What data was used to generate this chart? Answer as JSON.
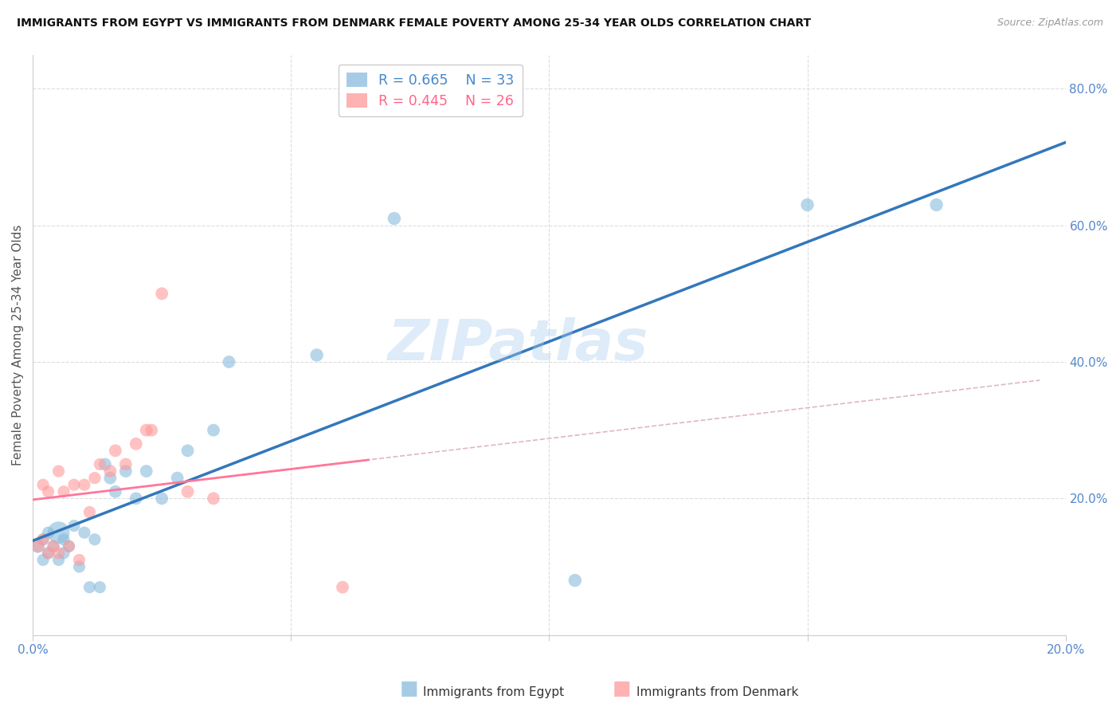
{
  "title": "IMMIGRANTS FROM EGYPT VS IMMIGRANTS FROM DENMARK FEMALE POVERTY AMONG 25-34 YEAR OLDS CORRELATION CHART",
  "source": "Source: ZipAtlas.com",
  "ylabel": "Female Poverty Among 25-34 Year Olds",
  "xlim": [
    0.0,
    0.2
  ],
  "ylim": [
    0.0,
    0.85
  ],
  "ytick_right": [
    0.2,
    0.4,
    0.6,
    0.8
  ],
  "ytick_right_labels": [
    "20.0%",
    "40.0%",
    "60.0%",
    "80.0%"
  ],
  "legend_egypt_R": "R = 0.665",
  "legend_egypt_N": "N = 33",
  "legend_denmark_R": "R = 0.445",
  "legend_denmark_N": "N = 26",
  "egypt_color": "#88BBDD",
  "denmark_color": "#FF9999",
  "egypt_line_color": "#3377BB",
  "denmark_line_color": "#FF7799",
  "ref_line_color": "#DDB0BB",
  "background_color": "#FFFFFF",
  "watermark": "ZIPatlas",
  "watermark_color": "#AACCEE",
  "egypt_x": [
    0.001,
    0.002,
    0.002,
    0.003,
    0.003,
    0.004,
    0.005,
    0.005,
    0.006,
    0.006,
    0.007,
    0.008,
    0.009,
    0.01,
    0.011,
    0.012,
    0.013,
    0.014,
    0.015,
    0.016,
    0.018,
    0.02,
    0.022,
    0.025,
    0.028,
    0.03,
    0.035,
    0.038,
    0.055,
    0.07,
    0.105,
    0.15,
    0.175
  ],
  "egypt_y": [
    0.13,
    0.11,
    0.14,
    0.12,
    0.15,
    0.13,
    0.11,
    0.15,
    0.12,
    0.14,
    0.13,
    0.16,
    0.1,
    0.15,
    0.07,
    0.14,
    0.07,
    0.25,
    0.23,
    0.21,
    0.24,
    0.2,
    0.24,
    0.2,
    0.23,
    0.27,
    0.3,
    0.4,
    0.41,
    0.61,
    0.08,
    0.63,
    0.63
  ],
  "denmark_x": [
    0.001,
    0.002,
    0.002,
    0.003,
    0.003,
    0.004,
    0.005,
    0.005,
    0.006,
    0.007,
    0.008,
    0.009,
    0.01,
    0.011,
    0.012,
    0.013,
    0.015,
    0.016,
    0.018,
    0.02,
    0.022,
    0.023,
    0.025,
    0.03,
    0.035,
    0.06
  ],
  "denmark_y": [
    0.13,
    0.14,
    0.22,
    0.12,
    0.21,
    0.13,
    0.24,
    0.12,
    0.21,
    0.13,
    0.22,
    0.11,
    0.22,
    0.18,
    0.23,
    0.25,
    0.24,
    0.27,
    0.25,
    0.28,
    0.3,
    0.3,
    0.5,
    0.21,
    0.2,
    0.07
  ],
  "egypt_sizes": [
    150,
    120,
    120,
    120,
    120,
    120,
    120,
    120,
    120,
    120,
    120,
    120,
    120,
    120,
    120,
    120,
    120,
    130,
    130,
    130,
    130,
    130,
    130,
    130,
    130,
    130,
    130,
    130,
    140,
    140,
    140,
    140,
    140
  ],
  "egypt_sizes_special": [
    [
      7,
      400
    ]
  ],
  "denmark_sizes": [
    120,
    120,
    120,
    120,
    120,
    120,
    120,
    120,
    120,
    120,
    120,
    120,
    120,
    120,
    120,
    120,
    130,
    130,
    130,
    130,
    130,
    130,
    130,
    130,
    130,
    130
  ]
}
